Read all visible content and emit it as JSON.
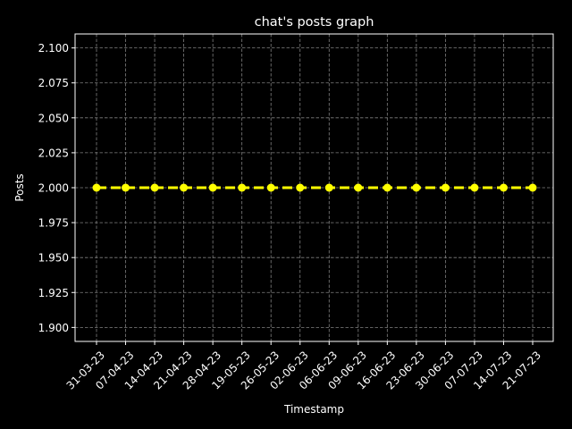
{
  "chart_data": {
    "type": "line",
    "title": "chat's posts graph",
    "xlabel": "Timestamp",
    "ylabel": "Posts",
    "categories": [
      "31-03-23",
      "07-04-23",
      "14-04-23",
      "21-04-23",
      "28-04-23",
      "19-05-23",
      "26-05-23",
      "02-06-23",
      "06-06-23",
      "09-06-23",
      "16-06-23",
      "23-06-23",
      "30-06-23",
      "07-07-23",
      "14-07-23",
      "21-07-23"
    ],
    "series": [
      {
        "values": [
          2,
          2,
          2,
          2,
          2,
          2,
          2,
          2,
          2,
          2,
          2,
          2,
          2,
          2,
          2,
          2
        ]
      }
    ],
    "ylim": [
      1.89,
      2.11
    ],
    "yticks": [
      1.9,
      1.925,
      1.95,
      1.975,
      2.0,
      2.025,
      2.05,
      2.075,
      2.1
    ],
    "ytick_labels": [
      "1.900",
      "1.925",
      "1.950",
      "1.975",
      "2.000",
      "2.025",
      "2.050",
      "2.075",
      "2.100"
    ],
    "grid": true,
    "line_style": "dashed",
    "marker": "circle",
    "colors": {
      "background": "#000000",
      "line": "#ffff00",
      "grid": "#808080",
      "axis": "#ffffff",
      "text": "#ffffff"
    }
  }
}
